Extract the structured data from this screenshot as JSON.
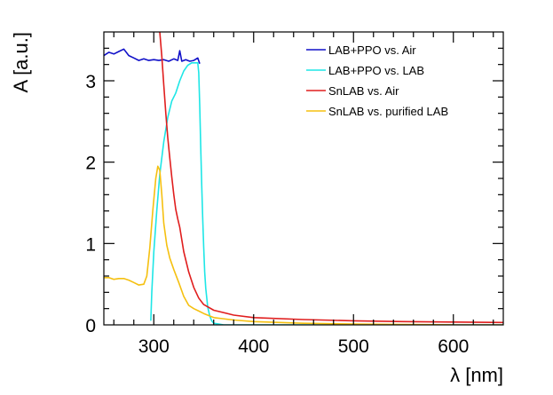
{
  "chart_data": {
    "type": "line",
    "xlabel": "λ [nm]",
    "ylabel": "A [a.u.]",
    "xlim": [
      250,
      650
    ],
    "ylim": [
      0,
      3.6
    ],
    "x_ticks": [
      300,
      400,
      500,
      600
    ],
    "y_ticks": [
      0,
      1,
      2,
      3
    ],
    "grid": false,
    "legend_position": "top-right",
    "series": [
      {
        "name": "LAB+PPO vs. Air",
        "color": "#1010c8",
        "x": [
          250,
          255,
          260,
          265,
          270,
          275,
          280,
          285,
          290,
          295,
          300,
          305,
          310,
          315,
          320,
          324,
          326,
          328,
          332,
          336,
          340,
          344,
          346
        ],
        "y": [
          3.31,
          3.35,
          3.33,
          3.36,
          3.39,
          3.31,
          3.28,
          3.25,
          3.27,
          3.25,
          3.26,
          3.25,
          3.26,
          3.24,
          3.27,
          3.25,
          3.37,
          3.24,
          3.26,
          3.24,
          3.25,
          3.28,
          3.21
        ]
      },
      {
        "name": "LAB+PPO vs. LAB",
        "color": "#1ee6e6",
        "x": [
          297,
          298,
          300,
          303,
          306,
          310,
          314,
          318,
          322,
          326,
          330,
          334,
          338,
          342,
          344,
          345,
          346,
          347,
          348,
          349,
          350,
          351,
          352,
          354,
          356,
          358,
          360,
          365,
          370,
          380,
          400,
          500,
          650
        ],
        "y": [
          0.05,
          0.4,
          0.9,
          1.4,
          1.85,
          2.25,
          2.55,
          2.75,
          2.85,
          3.0,
          3.12,
          3.19,
          3.22,
          3.22,
          3.22,
          3.1,
          2.7,
          2.2,
          1.7,
          1.3,
          0.95,
          0.65,
          0.45,
          0.22,
          0.11,
          0.05,
          0.02,
          0.01,
          0.0,
          0.0,
          0.0,
          0.0,
          0.0
        ]
      },
      {
        "name": "SnLAB vs. Air",
        "color": "#e01e1e",
        "x": [
          306,
          308,
          310,
          312,
          314,
          316,
          318,
          320,
          322,
          324,
          326,
          330,
          335,
          340,
          345,
          350,
          360,
          380,
          400,
          450,
          500,
          550,
          600,
          650
        ],
        "y": [
          3.6,
          3.3,
          2.95,
          2.6,
          2.3,
          2.05,
          1.82,
          1.6,
          1.42,
          1.3,
          1.2,
          0.9,
          0.65,
          0.46,
          0.33,
          0.25,
          0.18,
          0.12,
          0.09,
          0.065,
          0.05,
          0.04,
          0.035,
          0.03
        ]
      },
      {
        "name": "SnLAB vs. purified LAB",
        "color": "#f5c010",
        "x": [
          250,
          255,
          260,
          265,
          270,
          275,
          280,
          285,
          290,
          293,
          296,
          299,
          302,
          304,
          306,
          308,
          310,
          313,
          316,
          320,
          325,
          330,
          335,
          340,
          345,
          350,
          360,
          380,
          400,
          450,
          500,
          550,
          600,
          650
        ],
        "y": [
          0.58,
          0.58,
          0.56,
          0.57,
          0.57,
          0.55,
          0.52,
          0.49,
          0.5,
          0.6,
          0.95,
          1.4,
          1.8,
          1.95,
          1.9,
          1.6,
          1.25,
          0.98,
          0.82,
          0.68,
          0.52,
          0.35,
          0.24,
          0.2,
          0.17,
          0.14,
          0.09,
          0.06,
          0.04,
          0.02,
          0.01,
          0.005,
          0.0,
          0.0
        ]
      }
    ]
  }
}
